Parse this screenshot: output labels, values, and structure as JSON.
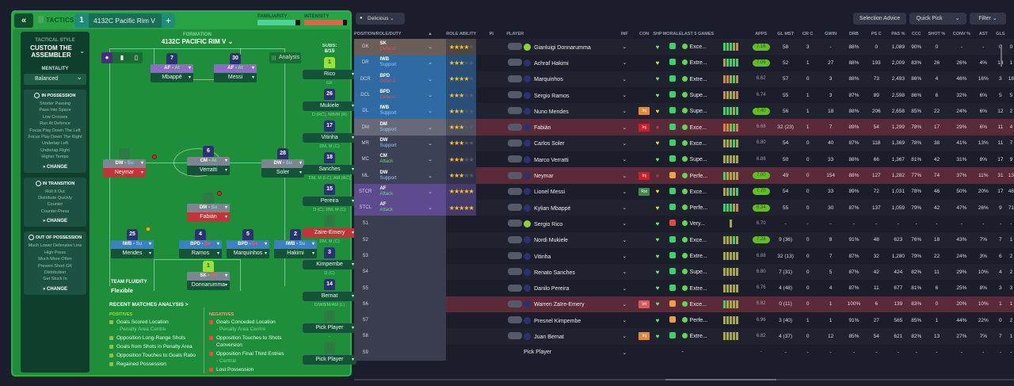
{
  "header": {
    "back_icon": "«",
    "tactics_label": "TACTICS",
    "tactic_slot": "1",
    "tactic_name": "4132C Pacific Rim V",
    "add_icon": "+",
    "familiarity_label": "FAMILIARITY",
    "familiarity_level": 0.88,
    "intensity_label": "INTENSITY",
    "intensity_level": 0.9
  },
  "sidebar": {
    "style_heading": "TACTICAL STYLE",
    "style_name": "CUSTOM THE ASSEMBLER",
    "mentality_heading": "MENTALITY",
    "mentality_value": "Balanced",
    "in_possession": {
      "title": "IN POSSESSION",
      "items": [
        "Shorter Passing",
        "Pass Into Space",
        "Low Crosses",
        "Run At Defence",
        "Focus Play Down The Left",
        "Focus Play Down The Right",
        "Underlap Left",
        "Underlap Right",
        "Higher Tempo"
      ],
      "change": "» CHANGE"
    },
    "in_transition": {
      "title": "IN TRANSITION",
      "items": [
        "Roll It Out",
        "Distribute Quickly",
        "Counter",
        "Counter-Press"
      ],
      "change": "» CHANGE"
    },
    "out_of_possession": {
      "title": "OUT OF POSSESSION",
      "items": [
        "Much Lower Defensive Line",
        "High Press",
        "Much More Often",
        "Prevent Short GK",
        "Distribution",
        "Get Stuck In"
      ],
      "change": "» CHANGE"
    }
  },
  "pitch": {
    "formation_label": "FORMATION",
    "formation_name": "4132C PACIFIC RIM  V  ⌄",
    "analysis_label": "Analysis",
    "team_fluidity_label": "TEAM FLUIDITY",
    "team_fluidity_value": "Flexible",
    "players": [
      {
        "num": "7",
        "role": "AF",
        "duty": "At",
        "name": "Mbappé",
        "cls": "af",
        "dcls": "d-at"
      },
      {
        "num": "30",
        "role": "AF",
        "duty": "At",
        "name": "Messi",
        "cls": "af",
        "dcls": "d-at"
      },
      {
        "num": "",
        "role": "DW",
        "duty": "Su",
        "name": "Neymar",
        "cls": "cm",
        "dcls": "d-su"
      },
      {
        "num": "6",
        "role": "CM",
        "duty": "At",
        "name": "Verratti",
        "cls": "cm",
        "dcls": "d-at"
      },
      {
        "num": "28",
        "role": "DW",
        "duty": "Su",
        "name": "Soler",
        "cls": "cm",
        "dcls": "d-su"
      },
      {
        "num": "",
        "role": "DM",
        "duty": "Su",
        "name": "Fabián",
        "cls": "dm",
        "dcls": "d-su"
      },
      {
        "num": "25",
        "role": "IWB",
        "duty": "Su",
        "name": "Mendes",
        "cls": "blue",
        "dcls": "d-su"
      },
      {
        "num": "4",
        "role": "BPD",
        "duty": "De",
        "name": "Ramos",
        "cls": "blue",
        "dcls": "d-de"
      },
      {
        "num": "5",
        "role": "BPD",
        "duty": "De",
        "name": "Marquinhos",
        "cls": "blue",
        "dcls": "d-de"
      },
      {
        "num": "2",
        "role": "IWB",
        "duty": "Su",
        "name": "Hakimi",
        "cls": "blue",
        "dcls": "d-su"
      },
      {
        "num": "1",
        "role": "SK",
        "duty": "De",
        "name": "Donnarumma",
        "cls": "sk",
        "dcls": "d-de"
      }
    ]
  },
  "subs": {
    "title": "SUBS:",
    "count": "8/15",
    "list": [
      {
        "num": "1",
        "name": "Rico",
        "pos": "GK"
      },
      {
        "num": "26",
        "name": "Mukiele",
        "pos": "D (RC), WB/M (R)"
      },
      {
        "num": "17",
        "name": "Vitinha",
        "pos": "DM, M (C)"
      },
      {
        "num": "18",
        "name": "Sanches",
        "pos": "DM, M (LC), AM (RC)"
      },
      {
        "num": "15",
        "name": "Pereira",
        "pos": "D (C), DM, M (C)"
      },
      {
        "num": "",
        "name": "Zaire-Emery",
        "pos": "DM, M (C)"
      },
      {
        "num": "3",
        "name": "Kimpembe",
        "pos": "D (C)"
      },
      {
        "num": "14",
        "name": "Bernat",
        "pos": "D/WB/M/AM (L)"
      },
      {
        "num": "",
        "name": "Pick Player",
        "pos": "-"
      },
      {
        "num": "",
        "name": "Pick Player",
        "pos": ""
      }
    ]
  },
  "recent": {
    "title": "RECENT MATCHES ANALYSIS >",
    "positives_label": "POSITIVES",
    "negatives_label": "NEGATIVES",
    "positives": [
      {
        "t": "Goals Scored Location",
        "s": "- Penalty Area Centre"
      },
      {
        "t": "Opposition Long-Range Shots",
        "s": ""
      },
      {
        "t": "Goals from Shots in Penalty Area",
        "s": ""
      },
      {
        "t": "Opposition Touches to Goals Ratio",
        "s": ""
      },
      {
        "t": "Regained Possession",
        "s": ""
      }
    ],
    "negatives": [
      {
        "t": "Goals Conceded Location",
        "s": "- Penalty Area Centre"
      },
      {
        "t": "Opposition Touches to Shots Conversion",
        "s": ""
      },
      {
        "t": "Opposition Final Third Entries",
        "s": "- Central"
      },
      {
        "t": "Lost Possession",
        "s": ""
      }
    ]
  },
  "toolbar": {
    "view_label": "Delicious  ⌄",
    "selection_advice": "Selection Advice",
    "quick_pick": "Quick Pick",
    "filter": "Filter  ⌄"
  },
  "table": {
    "headers": [
      "POSITION/ROLE/DUTY",
      "▲",
      "ROLE ABILITY",
      "PI",
      "PLAYER",
      "",
      "INF",
      "CON",
      "SHP",
      "MORALE",
      "LAST 5 GAMES",
      "",
      "APPS",
      "GL MST",
      "CR C",
      "GWIN",
      "DRB",
      "PS C",
      "PAS %",
      "CCC",
      "SHOT %",
      "CONV %",
      "AST",
      "GLS"
    ],
    "rows": [
      {
        "pos": "GK",
        "role": "SK",
        "duty": "Defend",
        "cat": "gk",
        "stars": 3.5,
        "name": "Gianluigi Donnarumma",
        "gk": true,
        "inf": "",
        "con": "g",
        "shp": "g",
        "morale": "Exce...",
        "bars": "gggyo",
        "rating": "7.16",
        "hi": true,
        "inj": false,
        "apps": "58",
        "glmst": "3",
        "crc": "-",
        "gwin": "88%",
        "drb": "0",
        "psc": "1,089",
        "pas": "90%",
        "ccc": "0",
        "shot": "-",
        "conv": "-",
        "ast": "0",
        "gls": "0"
      },
      {
        "pos": "DR",
        "role": "IWB",
        "duty": "Support",
        "cat": "def",
        "stars": 2.5,
        "name": "Achraf Hakimi",
        "inf": "",
        "con": "y",
        "shp": "g",
        "morale": "Extre...",
        "bars": "ygggg",
        "rating": "7.06",
        "hi": true,
        "inj": false,
        "apps": "52",
        "glmst": "1",
        "crc": "27",
        "gwin": "88%",
        "drb": "193",
        "psc": "2,009",
        "pas": "83%",
        "ccc": "26",
        "shot": "26%",
        "conv": "4%",
        "ast": "14",
        "gls": "1"
      },
      {
        "pos": "DCR",
        "role": "BPD",
        "duty": "Defend",
        "cat": "def",
        "stars": 3.5,
        "name": "Marquinhos",
        "inf": "",
        "con": "g",
        "shp": "g",
        "morale": "Extre...",
        "bars": "ooygo",
        "rating": "6.62",
        "hi": false,
        "inj": false,
        "apps": "57",
        "glmst": "0",
        "crc": "3",
        "gwin": "88%",
        "drb": "73",
        "psc": "2,493",
        "pas": "86%",
        "ccc": "4",
        "shot": "46%",
        "conv": "16%",
        "ast": "3",
        "gls": "18"
      },
      {
        "pos": "DCL",
        "role": "BPD",
        "duty": "Defend",
        "cat": "def",
        "stars": 3,
        "name": "Sergio Ramos",
        "inf": "",
        "con": "g",
        "shp": "g",
        "morale": "Supe...",
        "bars": "oyyyo",
        "rating": "6.74",
        "hi": false,
        "inj": false,
        "apps": "55",
        "glmst": "1",
        "crc": "3",
        "gwin": "87%",
        "drb": "89",
        "psc": "2,598",
        "pas": "86%",
        "ccc": "6",
        "shot": "32%",
        "conv": "6%",
        "ast": "5",
        "gls": "5"
      },
      {
        "pos": "DL",
        "role": "IWB",
        "duty": "Support",
        "cat": "def",
        "stars": 2.5,
        "name": "Nuno Mendes",
        "inf": "Inj",
        "infc": "#e08a3a",
        "con": "y",
        "shp": "g",
        "morale": "Supe...",
        "bars": "gggyg",
        "rating": "7.40",
        "hi": true,
        "inj": false,
        "apps": "56",
        "glmst": "1",
        "crc": "18",
        "gwin": "88%",
        "drb": "206",
        "psc": "2,658",
        "pas": "85%",
        "ccc": "22",
        "shot": "24%",
        "conv": "6%",
        "ast": "12",
        "gls": "2"
      },
      {
        "pos": "DM",
        "role": "DM",
        "duty": "Support",
        "cat": "dm",
        "stars": 2.5,
        "name": "Fabián",
        "inf": "Inj",
        "infc": "#c8202a",
        "con": "r",
        "shp": "g",
        "morale": "Exce...",
        "bars": "ooygo",
        "rating": "6.68",
        "hi": false,
        "inj": true,
        "apps": "32 (23)",
        "glmst": "1",
        "crc": "7",
        "gwin": "89%",
        "drb": "54",
        "psc": "1,299",
        "pas": "78%",
        "ccc": "17",
        "shot": "29%",
        "conv": "6%",
        "ast": "11",
        "gls": "4"
      },
      {
        "pos": "MR",
        "role": "DW",
        "duty": "Support",
        "cat": "mid",
        "stars": 3,
        "name": "Carlos Soler",
        "inf": "",
        "con": "y",
        "shp": "g",
        "morale": "Exce...",
        "bars": "yyygy",
        "rating": "6.80",
        "hi": false,
        "inj": false,
        "apps": "54",
        "glmst": "0",
        "crc": "40",
        "gwin": "87%",
        "drb": "118",
        "psc": "1,369",
        "pas": "78%",
        "ccc": "38",
        "shot": "41%",
        "conv": "13%",
        "ast": "11",
        "gls": "7"
      },
      {
        "pos": "MC",
        "role": "CM",
        "duty": "Attack",
        "cat": "mid",
        "stars": 3,
        "name": "Marco Verratti",
        "inf": "",
        "con": "g",
        "shp": "g",
        "morale": "Supe...",
        "bars": "yyyyy",
        "rating": "6.88",
        "hi": false,
        "inj": false,
        "apps": "50",
        "glmst": "0",
        "crc": "33",
        "gwin": "88%",
        "drb": "66",
        "psc": "1,367",
        "pas": "81%",
        "ccc": "42",
        "shot": "31%",
        "conv": "8%",
        "ast": "17",
        "gls": "9"
      },
      {
        "pos": "ML",
        "role": "DW",
        "duty": "Support",
        "cat": "mid",
        "stars": 2.5,
        "name": "Neymar",
        "inf": "Inj",
        "infc": "#c8202a",
        "con": "r",
        "shp": "o",
        "morale": "Perfe...",
        "bars": "gyyyy",
        "rating": "7.00",
        "hi": true,
        "inj": true,
        "apps": "49",
        "glmst": "0",
        "crc": "154",
        "gwin": "88%",
        "drb": "127",
        "psc": "1,282",
        "pas": "77%",
        "ccc": "74",
        "shot": "37%",
        "conv": "11%",
        "ast": "31",
        "gls": "13"
      },
      {
        "pos": "STCR",
        "role": "AF",
        "duty": "Attack",
        "cat": "att",
        "stars": 4.5,
        "name": "Lionel Messi",
        "inf": "Rst",
        "infc": "#3f8a4a",
        "con": "y",
        "shp": "g",
        "morale": "Exce...",
        "bars": "yygyg",
        "rating": "7.70",
        "hi": true,
        "inj": false,
        "apps": "54",
        "glmst": "0",
        "crc": "33",
        "gwin": "89%",
        "drb": "72",
        "psc": "1,031",
        "pas": "78%",
        "ccc": "46",
        "shot": "50%",
        "conv": "20%",
        "ast": "17",
        "gls": "48"
      },
      {
        "pos": "STCL",
        "role": "AF",
        "duty": "Attack",
        "cat": "att",
        "stars": 5,
        "name": "Kylian Mbappé",
        "inf": "",
        "con": "y",
        "shp": "g",
        "morale": "Perfe...",
        "bars": "gggyo",
        "rating": "8.34",
        "hi": true,
        "inj": false,
        "apps": "55",
        "glmst": "0",
        "crc": "30",
        "gwin": "87%",
        "drb": "137",
        "psc": "1,059",
        "pas": "79%",
        "ccc": "42",
        "shot": "47%",
        "conv": "26%",
        "ast": "9",
        "gls": "71"
      },
      {
        "pos": "S1",
        "role": "",
        "duty": "",
        "cat": "sub",
        "stars": 0,
        "name": "Sergio Rico",
        "gk": true,
        "inf": "",
        "con": "g",
        "shp": "r",
        "morale": "Very...",
        "bars": "y",
        "rating": "6.70",
        "hi": false,
        "inj": false,
        "apps": "-",
        "glmst": "-",
        "crc": "-",
        "gwin": "-",
        "drb": "-",
        "psc": "-",
        "pas": "-",
        "ccc": "-",
        "shot": "-",
        "conv": "-",
        "ast": "-",
        "gls": "-"
      },
      {
        "pos": "S2",
        "role": "",
        "duty": "",
        "cat": "sub",
        "stars": 0,
        "name": "Nordi Mukiele",
        "inf": "",
        "con": "g",
        "shp": "g",
        "morale": "Exce...",
        "bars": "yyygy",
        "rating": "7.28",
        "hi": true,
        "inj": false,
        "apps": "9 (36)",
        "glmst": "0",
        "crc": "8",
        "gwin": "91%",
        "drb": "48",
        "psc": "623",
        "pas": "76%",
        "ccc": "18",
        "shot": "43%",
        "conv": "7%",
        "ast": "7",
        "gls": "1"
      },
      {
        "pos": "S3",
        "role": "",
        "duty": "",
        "cat": "sub",
        "stars": 0,
        "name": "Vitinha",
        "inf": "",
        "con": "g",
        "shp": "g",
        "morale": "Extre...",
        "bars": "yyyyy",
        "rating": "6.88",
        "hi": false,
        "inj": false,
        "apps": "32 (13)",
        "glmst": "0",
        "crc": "7",
        "gwin": "87%",
        "drb": "32",
        "psc": "1,280",
        "pas": "79%",
        "ccc": "22",
        "shot": "24%",
        "conv": "3%",
        "ast": "6",
        "gls": "2"
      },
      {
        "pos": "S4",
        "role": "",
        "duty": "",
        "cat": "sub",
        "stars": 0,
        "name": "Renato Sanches",
        "inf": "",
        "con": "g",
        "shp": "g",
        "morale": "Supe...",
        "bars": "yyyyy",
        "rating": "6.80",
        "hi": false,
        "inj": false,
        "apps": "7 (31)",
        "glmst": "0",
        "crc": "5",
        "gwin": "87%",
        "drb": "42",
        "psc": "424",
        "pas": "82%",
        "ccc": "11",
        "shot": "29%",
        "conv": "10%",
        "ast": "4",
        "gls": "2"
      },
      {
        "pos": "S5",
        "role": "",
        "duty": "",
        "cat": "sub",
        "stars": 0,
        "name": "Danilo Pereira",
        "inf": "",
        "con": "g",
        "shp": "g",
        "morale": "Extre...",
        "bars": "yyyyy",
        "rating": "6.76",
        "hi": false,
        "inj": false,
        "apps": "4 (48)",
        "glmst": "0",
        "crc": "4",
        "gwin": "87%",
        "drb": "11",
        "psc": "677",
        "pas": "81%",
        "ccc": "6",
        "shot": "25%",
        "conv": "8%",
        "ast": "3",
        "gls": "3"
      },
      {
        "pos": "S6",
        "role": "",
        "duty": "",
        "cat": "sub",
        "stars": 0,
        "name": "Warren Zaïre-Emery",
        "inf": "Int",
        "infc": "#d85a5a",
        "con": "g",
        "shp": "o",
        "morale": "Exce...",
        "bars": "gyyyy",
        "rating": "6.82",
        "hi": false,
        "inj": true,
        "apps": "0 (11)",
        "glmst": "0",
        "crc": "1",
        "gwin": "100%",
        "drb": "6",
        "psc": "139",
        "pas": "83%",
        "ccc": "0",
        "shot": "20%",
        "conv": "10%",
        "ast": "1",
        "gls": "1"
      },
      {
        "pos": "S7",
        "role": "",
        "duty": "",
        "cat": "sub",
        "stars": 0,
        "name": "Presnel Kimpembe",
        "inf": "",
        "con": "g",
        "shp": "o",
        "morale": "Perfe...",
        "bars": "yyyyy",
        "rating": "6.96",
        "hi": false,
        "inj": false,
        "apps": "3 (40)",
        "glmst": "1",
        "crc": "1",
        "gwin": "91%",
        "drb": "27",
        "psc": "565",
        "pas": "85%",
        "ccc": "1",
        "shot": "44%",
        "conv": "22%",
        "ast": "0",
        "gls": "2"
      },
      {
        "pos": "S8",
        "role": "",
        "duty": "",
        "cat": "sub",
        "stars": 0,
        "name": "Juan Bernat",
        "inf": "Inj",
        "infc": "#e08a3a",
        "con": "o",
        "shp": "g",
        "morale": "Extre...",
        "bars": "yyyyy",
        "rating": "6.82",
        "hi": false,
        "inj": false,
        "apps": "4 (37)",
        "glmst": "0",
        "crc": "12",
        "gwin": "85%",
        "drb": "54",
        "psc": "621",
        "pas": "82%",
        "ccc": "13",
        "shot": "27%",
        "conv": "7%",
        "ast": "7",
        "gls": "1"
      },
      {
        "pos": "S9",
        "role": "",
        "duty": "",
        "cat": "sub",
        "stars": 0,
        "name": "Pick Player",
        "empty": true,
        "inf": "",
        "con": "",
        "shp": "",
        "morale": "-",
        "bars": "",
        "rating": "-",
        "hi": false,
        "inj": false,
        "apps": "-",
        "glmst": "-",
        "crc": "-",
        "gwin": "-",
        "drb": "-",
        "psc": "-",
        "pas": "-",
        "ccc": "-",
        "shot": "-",
        "conv": "-",
        "ast": "-",
        "gls": "-"
      }
    ]
  },
  "colors": {
    "pitch": "#1f8e3b",
    "panel": "#1b1c2c",
    "injured_row": "#5a2a38",
    "familiarity": "#4fd19e",
    "intensity": "#f05a4a"
  }
}
